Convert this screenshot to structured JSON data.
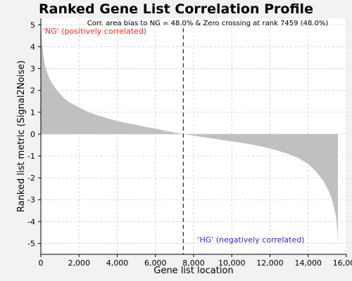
{
  "chart_data": {
    "type": "area",
    "title": "Ranked Gene List Correlation Profile",
    "annotation": "Corr. area bias to NG = 48.0% & Zero crossing at rank 7459 (48.0%)",
    "xlabel": "Gene list location",
    "ylabel": "Ranked list metric (Signal2Noise)",
    "xlim": [
      0,
      16000
    ],
    "ylim": [
      -5.5,
      5.3
    ],
    "x_ticks": [
      0,
      2000,
      4000,
      6000,
      8000,
      10000,
      12000,
      14000,
      16000
    ],
    "x_tick_labels": [
      "0",
      "2,000",
      "4,000",
      "6,000",
      "8,000",
      "10,000",
      "12,000",
      "14,000",
      "16,000"
    ],
    "y_ticks": [
      5,
      4,
      3,
      2,
      1,
      0,
      -1,
      -2,
      -3,
      -4,
      -5
    ],
    "grid": true,
    "zero_crossing_rank": 7459,
    "positive_label": "'NG' (positively correlated)",
    "negative_label": "'HG' (negatively correlated)",
    "positive_label_color": "#ff2020",
    "negative_label_color": "#2a2ad0",
    "fill_color": "#c0c0c0",
    "series": [
      {
        "x": [
          0,
          25,
          60,
          120,
          200,
          300,
          450,
          600,
          800,
          1000,
          1250,
          1500,
          2000,
          2500,
          3000,
          3500,
          4000,
          4500,
          5000,
          5500,
          6000,
          6500,
          7000,
          7459,
          8000,
          8500,
          9000,
          9500,
          10000,
          10500,
          11000,
          11500,
          12000,
          12500,
          13000,
          13500,
          14000,
          14400,
          14800,
          15100,
          15300,
          15450,
          15520,
          15540,
          15556
        ],
        "values": [
          5.3,
          4.8,
          4.2,
          3.7,
          3.2,
          2.9,
          2.55,
          2.3,
          2.05,
          1.85,
          1.62,
          1.45,
          1.22,
          1.0,
          0.85,
          0.72,
          0.6,
          0.5,
          0.42,
          0.33,
          0.25,
          0.16,
          0.07,
          0.0,
          -0.07,
          -0.14,
          -0.2,
          -0.27,
          -0.33,
          -0.4,
          -0.47,
          -0.56,
          -0.66,
          -0.78,
          -0.92,
          -1.1,
          -1.37,
          -1.7,
          -2.15,
          -2.65,
          -3.15,
          -3.75,
          -4.35,
          -4.7,
          -4.95
        ]
      }
    ]
  }
}
